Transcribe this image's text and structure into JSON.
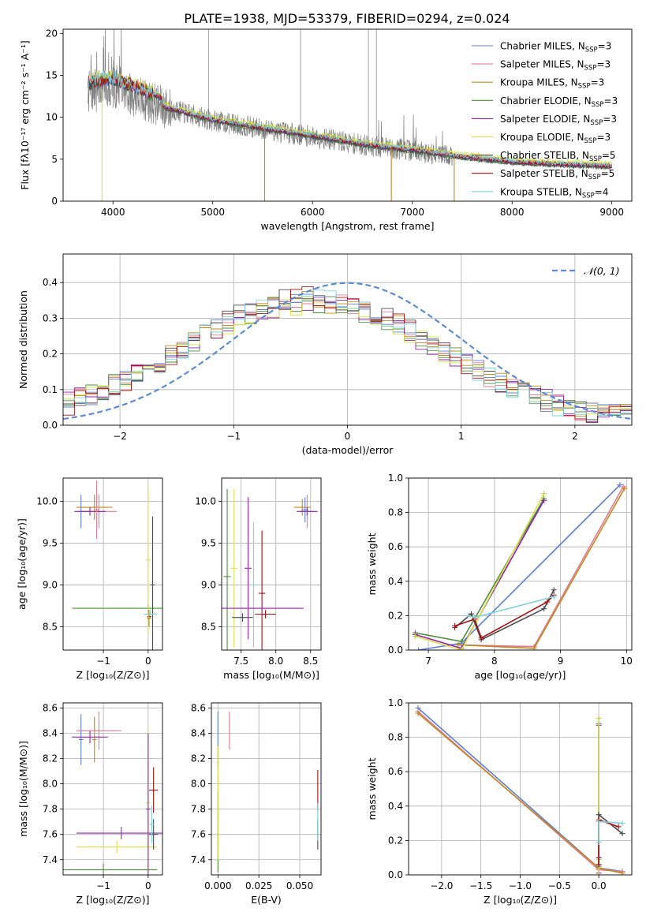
{
  "figure": {
    "title": "PLATE=1938, MJD=53379, FIBERID=0294, z=0.024"
  },
  "legend_entries": [
    {
      "model": "Chabrier MILES",
      "nssp": "3",
      "color": "#5b7fd6"
    },
    {
      "model": "Salpeter MILES",
      "nssp": "3",
      "color": "#e07c96"
    },
    {
      "model": "Kroupa MILES",
      "nssp": "3",
      "color": "#c08a1e"
    },
    {
      "model": "Chabrier ELODIE",
      "nssp": "3",
      "color": "#4f8f3f"
    },
    {
      "model": "Salpeter ELODIE",
      "nssp": "3",
      "color": "#9423b5"
    },
    {
      "model": "Kroupa ELODIE",
      "nssp": "3",
      "color": "#d6e340"
    },
    {
      "model": "Chabrier STELIB",
      "nssp": "5",
      "color": "#4a4a4a"
    },
    {
      "model": "Salpeter STELIB",
      "nssp": "5",
      "color": "#a81010"
    },
    {
      "model": "Kroupa STELIB",
      "nssp": "4",
      "color": "#7fd0dc"
    }
  ],
  "chart_data": [
    {
      "id": "spectrum",
      "type": "line",
      "xlabel": "wavelength [Angstrom, rest frame]",
      "ylabel": "Flux [fλ10⁻¹⁷ erg cm⁻² s⁻¹ A⁻¹]",
      "xlim": [
        3500,
        9200
      ],
      "ylim": [
        0,
        20.5
      ],
      "xticks": [
        4000,
        5000,
        6000,
        7000,
        8000,
        9000
      ],
      "yticks": [
        0,
        5,
        10,
        15,
        20
      ],
      "data_color": "#808080",
      "data_range": [
        3750,
        9000
      ],
      "continuum_points": [
        [
          3750,
          13.0
        ],
        [
          4000,
          13.6
        ],
        [
          4500,
          11.2
        ],
        [
          5000,
          9.6
        ],
        [
          5500,
          8.6
        ],
        [
          6000,
          7.7
        ],
        [
          6500,
          6.7
        ],
        [
          7000,
          6.0
        ],
        [
          7500,
          5.2
        ],
        [
          8000,
          4.6
        ],
        [
          8500,
          4.3
        ],
        [
          9000,
          4.1
        ]
      ],
      "model_range": [
        3750,
        9000
      ],
      "model_drops": [
        {
          "series": 5,
          "x": 3890
        },
        {
          "series": 2,
          "x": 5520
        },
        {
          "series": 2,
          "x": 6790
        },
        {
          "series": 2,
          "x": 7420
        }
      ]
    },
    {
      "id": "residuals",
      "type": "line",
      "xlabel": "(data-model)/error",
      "ylabel": "Normed distribution",
      "xlim": [
        -2.5,
        2.5
      ],
      "ylim": [
        0,
        0.48
      ],
      "xticks": [
        -2,
        -1,
        0,
        1,
        2
      ],
      "yticks": [
        0.0,
        0.1,
        0.2,
        0.3,
        0.4
      ],
      "legend": "𝒩(0, 1)",
      "gauss_color": "#5b8bd6",
      "bin_width": 0.1
    },
    {
      "id": "age_Z",
      "type": "scatter",
      "xlabel": "Z [log₁₀(Z/Z⊙)]",
      "ylabel": "age  [log₁₀(age/yr)]",
      "xlim": [
        -1.9,
        0.32
      ],
      "ylim": [
        8.22,
        10.28
      ],
      "xticks": [
        -1,
        0
      ],
      "yticks": [
        8.5,
        9.0,
        9.5,
        10.0
      ],
      "points": [
        {
          "s": 0,
          "x": -1.5,
          "y": 9.88,
          "xe": 0.05,
          "ye": 0.2
        },
        {
          "s": 1,
          "x": -1.1,
          "y": 9.88,
          "xe": 0.4,
          "ye": 0.2
        },
        {
          "s": 2,
          "x": -1.2,
          "y": 9.93,
          "xe": 0.4,
          "ye": 0.15
        },
        {
          "s": 4,
          "x": -1.3,
          "y": 9.88,
          "xe": 0.35,
          "ye": 0.05
        },
        {
          "s": 1,
          "x": -1.15,
          "y": 9.9,
          "xe": 0.05,
          "ye": 0.35
        },
        {
          "s": 5,
          "x": 0.0,
          "y": 8.72,
          "xe": 1.6,
          "ye": 0.05
        },
        {
          "s": 3,
          "x": 0.0,
          "y": 8.72,
          "xe": 1.7,
          "ye": 0.05
        },
        {
          "s": 6,
          "x": 0.1,
          "y": 9.0,
          "xe": 0.05,
          "ye": 0.82
        },
        {
          "s": 8,
          "x": 0.05,
          "y": 8.65,
          "xe": 0.15,
          "ye": 0.05
        },
        {
          "s": 7,
          "x": 0.02,
          "y": 8.62,
          "xe": 0.05,
          "ye": 0.05
        },
        {
          "s": 5,
          "x": 0.0,
          "y": 9.3,
          "xe": 0.05,
          "ye": 0.9
        },
        {
          "s": 2,
          "x": 0.02,
          "y": 8.6,
          "xe": 0.05,
          "ye": 0.1
        }
      ]
    },
    {
      "id": "age_mass",
      "type": "scatter",
      "xlabel": "mass [log₁₀(M/M⊙)]",
      "ylabel": "",
      "xlim": [
        7.22,
        8.65
      ],
      "ylim": [
        8.22,
        10.28
      ],
      "xticks": [
        7.5,
        8.0,
        8.5
      ],
      "yticks": [
        8.5,
        9.0,
        9.5,
        10.0
      ],
      "points": [
        {
          "s": 2,
          "x": 8.38,
          "y": 9.93,
          "xe": 0.12,
          "ye": 0.1
        },
        {
          "s": 0,
          "x": 8.42,
          "y": 9.9,
          "xe": 0.05,
          "ye": 0.15
        },
        {
          "s": 1,
          "x": 8.45,
          "y": 9.88,
          "xe": 0.1,
          "ye": 0.2
        },
        {
          "s": 4,
          "x": 8.45,
          "y": 9.88,
          "xe": 0.15,
          "ye": 0.05
        },
        {
          "s": 5,
          "x": 7.4,
          "y": 9.2,
          "xe": 0.05,
          "ye": 0.95
        },
        {
          "s": 3,
          "x": 7.3,
          "y": 9.1,
          "xe": 0.05,
          "ye": 1.05
        },
        {
          "s": 4,
          "x": 7.6,
          "y": 9.2,
          "xe": 0.05,
          "ye": 0.85
        },
        {
          "s": 8,
          "x": 7.68,
          "y": 9.0,
          "xe": 0.05,
          "ye": 0.75
        },
        {
          "s": 7,
          "x": 7.8,
          "y": 8.9,
          "xe": 0.05,
          "ye": 0.75
        },
        {
          "s": 5,
          "x": 7.8,
          "y": 8.72,
          "xe": 0.5,
          "ye": 0.05
        },
        {
          "s": 4,
          "x": 7.8,
          "y": 8.72,
          "xe": 0.6,
          "ye": 0.05
        },
        {
          "s": 6,
          "x": 7.52,
          "y": 8.61,
          "xe": 0.15,
          "ye": 0.05
        },
        {
          "s": 7,
          "x": 7.85,
          "y": 8.65,
          "xe": 0.15,
          "ye": 0.05
        }
      ]
    },
    {
      "id": "weight_age",
      "type": "line",
      "xlabel": "age  [log₁₀(age/yr)]",
      "ylabel": "mass weight",
      "xlim": [
        6.7,
        10.08
      ],
      "ylim": [
        0,
        1.0
      ],
      "xticks": [
        7,
        8,
        9,
        10
      ],
      "yticks": [
        0.0,
        0.2,
        0.4,
        0.6,
        0.8,
        1.0
      ],
      "series": [
        {
          "s": 0,
          "x": [
            6.85,
            7.5,
            9.9
          ],
          "y": [
            0.0,
            0.04,
            0.96
          ]
        },
        {
          "s": 1,
          "x": [
            7.5,
            8.6,
            9.95
          ],
          "y": [
            0.03,
            0.02,
            0.95
          ]
        },
        {
          "s": 2,
          "x": [
            7.45,
            8.6,
            9.97
          ],
          "y": [
            0.03,
            0.01,
            0.94
          ]
        },
        {
          "s": 3,
          "x": [
            6.8,
            7.5,
            8.75
          ],
          "y": [
            0.1,
            0.05,
            0.88
          ]
        },
        {
          "s": 4,
          "x": [
            6.8,
            7.5,
            8.75
          ],
          "y": [
            0.09,
            0.01,
            0.87
          ]
        },
        {
          "s": 5,
          "x": [
            6.8,
            7.5,
            8.75
          ],
          "y": [
            0.08,
            0.0,
            0.91
          ]
        },
        {
          "s": 6,
          "x": [
            7.4,
            7.65,
            7.8,
            8.75,
            8.9
          ],
          "y": [
            0.13,
            0.21,
            0.06,
            0.24,
            0.35
          ]
        },
        {
          "s": 7,
          "x": [
            7.4,
            7.7,
            7.8,
            8.8,
            8.9
          ],
          "y": [
            0.14,
            0.18,
            0.07,
            0.28,
            0.32
          ]
        },
        {
          "s": 8,
          "x": [
            7.6,
            7.7,
            8.9
          ],
          "y": [
            0.2,
            0.19,
            0.31
          ]
        }
      ]
    },
    {
      "id": "mass_Z",
      "type": "scatter",
      "xlabel": "Z [log₁₀(Z/Z⊙)]",
      "ylabel": "mass [log₁₀(M/M⊙)]",
      "xlim": [
        -1.9,
        0.32
      ],
      "ylim": [
        7.28,
        8.64
      ],
      "xticks": [
        -1,
        0
      ],
      "yticks": [
        7.4,
        7.6,
        7.8,
        8.0,
        8.2,
        8.4,
        8.6
      ],
      "points": [
        {
          "s": 0,
          "x": -1.5,
          "y": 8.35,
          "xe": 0.05,
          "ye": 0.2
        },
        {
          "s": 2,
          "x": -1.2,
          "y": 8.35,
          "xe": 0.05,
          "ye": 0.18
        },
        {
          "s": 1,
          "x": -1.1,
          "y": 8.42,
          "xe": 0.5,
          "ye": 0.15
        },
        {
          "s": 4,
          "x": -1.3,
          "y": 8.37,
          "xe": 0.4,
          "ye": 0.05
        },
        {
          "s": 3,
          "x": -1.0,
          "y": 7.32,
          "xe": 1.2,
          "ye": 0.05
        },
        {
          "s": 4,
          "x": -0.6,
          "y": 7.61,
          "xe": 1.0,
          "ye": 0.05
        },
        {
          "s": 5,
          "x": -0.7,
          "y": 7.5,
          "xe": 0.9,
          "ye": 0.05
        },
        {
          "s": 5,
          "x": 0.0,
          "y": 7.85,
          "xe": 0.05,
          "ye": 0.6
        },
        {
          "s": 4,
          "x": 0.0,
          "y": 7.8,
          "xe": 0.05,
          "ye": 0.6
        },
        {
          "s": 7,
          "x": 0.12,
          "y": 7.95,
          "xe": 0.1,
          "ye": 0.18
        },
        {
          "s": 6,
          "x": 0.12,
          "y": 7.6,
          "xe": 0.1,
          "ye": 0.12
        },
        {
          "s": 8,
          "x": 0.08,
          "y": 7.68,
          "xe": 0.05,
          "ye": 0.15
        }
      ]
    },
    {
      "id": "mass_EBV",
      "type": "scatter",
      "xlabel": "E(B-V)",
      "ylabel": "",
      "xlim": [
        -0.004,
        0.063
      ],
      "ylim": [
        7.28,
        8.64
      ],
      "xticks": [
        0.0,
        0.025,
        0.05
      ],
      "tick_labels": [
        "0.000",
        "0.025",
        "0.050"
      ],
      "yticks": [
        7.4,
        7.6,
        7.8,
        8.0,
        8.2,
        8.4,
        8.6
      ],
      "points": [
        {
          "s": 0,
          "x": 0.0,
          "y": 8.35,
          "xe": 0.0,
          "ye": 0.22
        },
        {
          "s": 1,
          "x": 0.007,
          "y": 8.42,
          "xe": 0.0,
          "ye": 0.15
        },
        {
          "s": 3,
          "x": 0.0,
          "y": 7.62,
          "xe": 0.0,
          "ye": 0.32
        },
        {
          "s": 5,
          "x": 0.0,
          "y": 7.85,
          "xe": 0.0,
          "ye": 0.45
        },
        {
          "s": 7,
          "x": 0.061,
          "y": 7.95,
          "xe": 0.0,
          "ye": 0.16
        },
        {
          "s": 6,
          "x": 0.061,
          "y": 7.6,
          "xe": 0.0,
          "ye": 0.12
        },
        {
          "s": 8,
          "x": 0.061,
          "y": 7.7,
          "xe": 0.0,
          "ye": 0.15
        }
      ]
    },
    {
      "id": "weight_Z",
      "type": "line",
      "xlabel": "Z [log₁₀(Z/Z⊙)]",
      "ylabel": "mass weight",
      "xlim": [
        -2.42,
        0.42
      ],
      "ylim": [
        0,
        1.0
      ],
      "xticks": [
        -2.0,
        -1.5,
        -1.0,
        -0.5,
        0.0
      ],
      "yticks": [
        0.0,
        0.2,
        0.4,
        0.6,
        0.8,
        1.0
      ],
      "series": [
        {
          "s": 0,
          "x": [
            -2.3,
            0.0,
            0.3
          ],
          "y": [
            0.97,
            0.04,
            0.02
          ]
        },
        {
          "s": 1,
          "x": [
            -2.3,
            0.0,
            0.3
          ],
          "y": [
            0.95,
            0.03,
            0.02
          ]
        },
        {
          "s": 2,
          "x": [
            -2.3,
            0.0,
            0.3
          ],
          "y": [
            0.94,
            0.04,
            0.01
          ]
        },
        {
          "s": 3,
          "x": [
            0.0,
            0.0,
            0.0
          ],
          "y": [
            0.05,
            0.88,
            0.1
          ]
        },
        {
          "s": 4,
          "x": [
            0.0,
            0.0,
            0.0
          ],
          "y": [
            0.01,
            0.87,
            0.1
          ]
        },
        {
          "s": 5,
          "x": [
            0.0,
            0.0,
            0.0
          ],
          "y": [
            0.0,
            0.91,
            0.09
          ]
        },
        {
          "s": 6,
          "x": [
            0.0,
            0.0,
            0.3
          ],
          "y": [
            0.06,
            0.35,
            0.24
          ]
        },
        {
          "s": 7,
          "x": [
            0.0,
            0.0,
            0.25
          ],
          "y": [
            0.06,
            0.32,
            0.28
          ]
        },
        {
          "s": 8,
          "x": [
            0.0,
            0.0,
            0.3
          ],
          "y": [
            0.19,
            0.31,
            0.3
          ]
        }
      ]
    }
  ]
}
